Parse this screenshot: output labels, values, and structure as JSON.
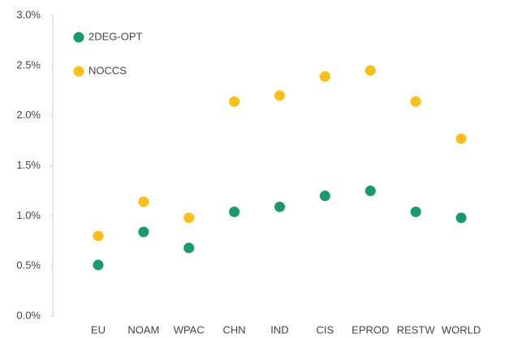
{
  "chart_data": {
    "type": "dot",
    "categories": [
      "EU",
      "NOAM",
      "WPAC",
      "CHN",
      "IND",
      "CIS",
      "EPROD",
      "RESTW",
      "WORLD"
    ],
    "series": [
      {
        "name": "2DEG-OPT",
        "color": "#1a9a6c",
        "values": [
          0.51,
          0.84,
          0.68,
          1.04,
          1.09,
          1.2,
          1.25,
          1.04,
          0.98
        ]
      },
      {
        "name": "NOCCS",
        "color": "#fbbf1a",
        "values": [
          0.8,
          1.14,
          0.98,
          2.14,
          2.2,
          2.39,
          2.45,
          2.14,
          1.77
        ]
      }
    ],
    "ylim": [
      0,
      3
    ],
    "yticks": [
      {
        "value": 0,
        "label": "0.0%"
      },
      {
        "value": 0.5,
        "label": "0.5%"
      },
      {
        "value": 1,
        "label": "1.0%"
      },
      {
        "value": 1.5,
        "label": "1.5%"
      },
      {
        "value": 2,
        "label": "2.0%"
      },
      {
        "value": 2.5,
        "label": "2.5%"
      },
      {
        "value": 3,
        "label": "3.0%"
      }
    ],
    "grid": false,
    "legend": "top-left"
  }
}
